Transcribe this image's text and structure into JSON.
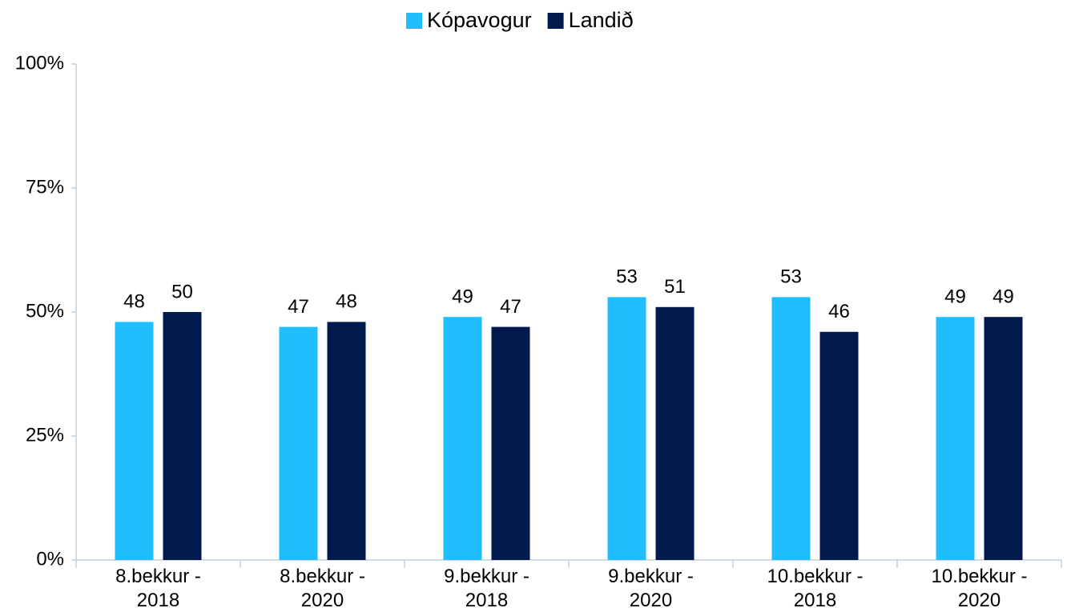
{
  "chart_data": {
    "type": "bar",
    "categories": [
      "8.bekkur -\n2018",
      "8.bekkur -\n2020",
      "9.bekkur -\n2018",
      "9.bekkur -\n2020",
      "10.bekkur -\n2018",
      "10.bekkur -\n2020"
    ],
    "series": [
      {
        "name": "Kópavogur",
        "color": "#1fbfff",
        "values": [
          48,
          47,
          49,
          53,
          53,
          49
        ]
      },
      {
        "name": "Landið",
        "color": "#001a4d",
        "values": [
          50,
          48,
          47,
          51,
          46,
          49
        ]
      }
    ],
    "ylim": [
      0,
      100
    ],
    "yticks": [
      {
        "value": 0,
        "label": "0%"
      },
      {
        "value": 25,
        "label": "25%"
      },
      {
        "value": 50,
        "label": "50%"
      },
      {
        "value": 75,
        "label": "75%"
      },
      {
        "value": 100,
        "label": "100%"
      }
    ],
    "grid": false,
    "legend": "top"
  }
}
